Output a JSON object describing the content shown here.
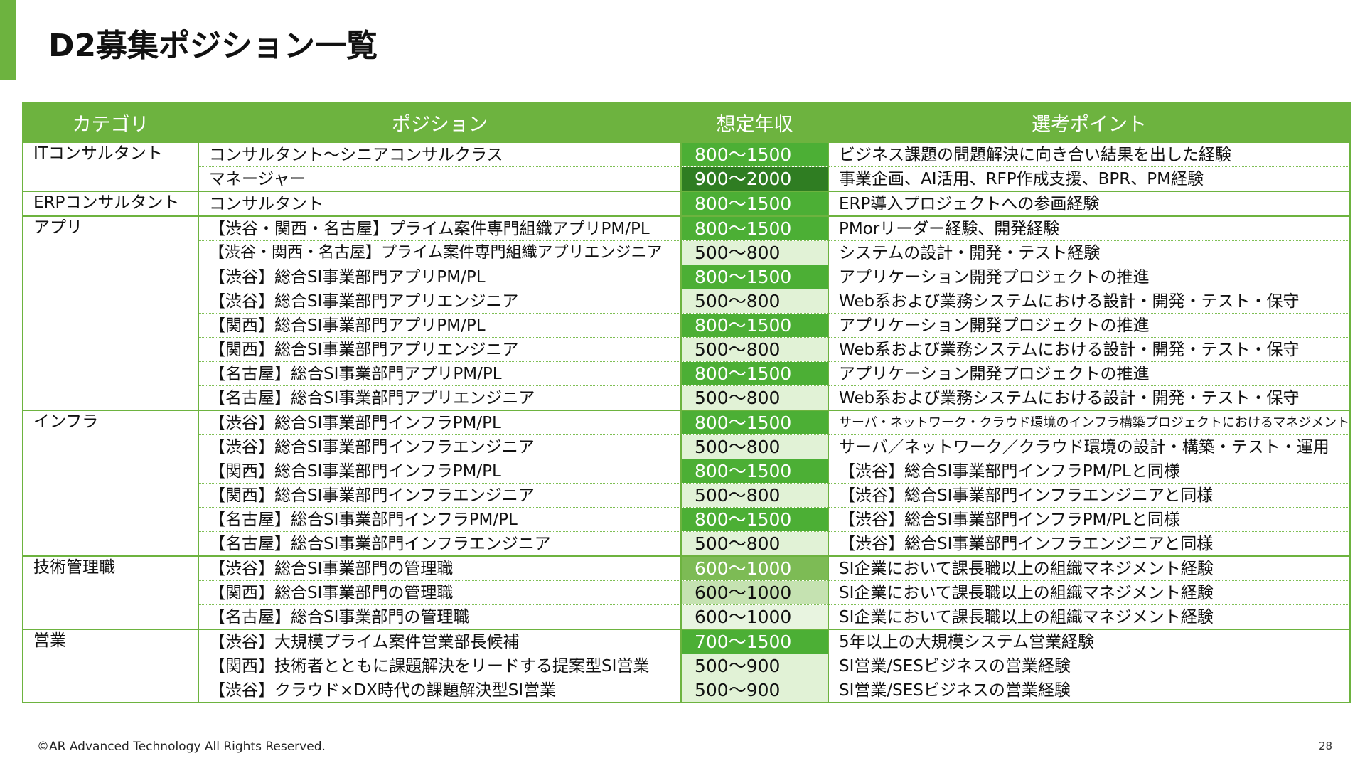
{
  "header": {
    "title": "D2募集ポジション一覧"
  },
  "table": {
    "columns": [
      "カテゴリ",
      "ポジション",
      "想定年収",
      "選考ポイント"
    ],
    "groups": [
      {
        "category": "ITコンサルタント",
        "positions": [
          {
            "position": "コンサルタント～シニアコンサルクラス",
            "salary": "800～1500",
            "salary_color": "#4caf35",
            "point": "ビジネス課題の問題解決に向き合い結果を出した経験"
          },
          {
            "position": "マネージャー",
            "salary": "900～2000",
            "salary_color": "#2f7d22",
            "point": "事業企画、AI活用、RFP作成支援、BPR、PM経験"
          }
        ]
      },
      {
        "category": "ERPコンサルタント",
        "positions": [
          {
            "position": "コンサルタント",
            "salary": "800～1500",
            "salary_color": "#4caf35",
            "point": "ERP導入プロジェクトへの参画経験"
          }
        ]
      },
      {
        "category": "アプリ",
        "positions": [
          {
            "position": "【渋谷・関西・名古屋】プライム案件専門組織アプリPM/PL",
            "salary": "800～1500",
            "salary_color": "#4caf35",
            "point": "PMorリーダー経験、開発経験"
          },
          {
            "position": "【渋谷・関西・名古屋】プライム案件専門組織アプリエンジニア",
            "salary": "500～800",
            "salary_color": "#e1f2d6",
            "point": "システムの設計・開発・テスト経験"
          },
          {
            "position": "【渋谷】総合SI事業部門アプリPM/PL",
            "salary": "800～1500",
            "salary_color": "#4caf35",
            "point": "アプリケーション開発プロジェクトの推進"
          },
          {
            "position": "【渋谷】総合SI事業部門アプリエンジニア",
            "salary": "500～800",
            "salary_color": "#e1f2d6",
            "point": "Web系および業務システムにおける設計・開発・テスト・保守"
          },
          {
            "position": "【関西】総合SI事業部門アプリPM/PL",
            "salary": "800～1500",
            "salary_color": "#4caf35",
            "point": "アプリケーション開発プロジェクトの推進"
          },
          {
            "position": "【関西】総合SI事業部門アプリエンジニア",
            "salary": "500～800",
            "salary_color": "#e1f2d6",
            "point": "Web系および業務システムにおける設計・開発・テスト・保守"
          },
          {
            "position": "【名古屋】総合SI事業部門アプリPM/PL",
            "salary": "800～1500",
            "salary_color": "#4caf35",
            "point": "アプリケーション開発プロジェクトの推進"
          },
          {
            "position": "【名古屋】総合SI事業部門アプリエンジニア",
            "salary": "500～800",
            "salary_color": "#e1f2d6",
            "point": "Web系および業務システムにおける設計・開発・テスト・保守"
          }
        ]
      },
      {
        "category": "インフラ",
        "positions": [
          {
            "position": "【渋谷】総合SI事業部門インフラPM/PL",
            "salary": "800～1500",
            "salary_color": "#4caf35",
            "point": "サーバ・ネットワーク・クラウド環境のインフラ構築プロジェクトにおけるマネジメント"
          },
          {
            "position": "【渋谷】総合SI事業部門インフラエンジニア",
            "salary": "500～800",
            "salary_color": "#e1f2d6",
            "point": "サーバ／ネットワーク／クラウド環境の設計・構築・テスト・運用"
          },
          {
            "position": "【関西】総合SI事業部門インフラPM/PL",
            "salary": "800～1500",
            "salary_color": "#4caf35",
            "point": "【渋谷】総合SI事業部門インフラPM/PLと同様"
          },
          {
            "position": "【関西】総合SI事業部門インフラエンジニア",
            "salary": "500～800",
            "salary_color": "#e1f2d6",
            "point": "【渋谷】総合SI事業部門インフラエンジニアと同様"
          },
          {
            "position": "【名古屋】総合SI事業部門インフラPM/PL",
            "salary": "800～1500",
            "salary_color": "#4caf35",
            "point": "【渋谷】総合SI事業部門インフラPM/PLと同様"
          },
          {
            "position": "【名古屋】総合SI事業部門インフラエンジニア",
            "salary": "500～800",
            "salary_color": "#e1f2d6",
            "point": "【渋谷】総合SI事業部門インフラエンジニアと同様"
          }
        ]
      },
      {
        "category": "技術管理職",
        "positions": [
          {
            "position": "【渋谷】総合SI事業部門の管理職",
            "salary": "600～1000",
            "salary_color": "#7dbb55",
            "point": "SI企業において課長職以上の組織マネジメント経験"
          },
          {
            "position": "【関西】総合SI事業部門の管理職",
            "salary": "600～1000",
            "salary_color": "#c5e2b1",
            "point": "SI企業において課長職以上の組織マネジメント経験"
          },
          {
            "position": "【名古屋】総合SI事業部門の管理職",
            "salary": "600～1000",
            "salary_color": "#e8f4e0",
            "point": "SI企業において課長職以上の組織マネジメント経験"
          }
        ]
      },
      {
        "category": "営業",
        "positions": [
          {
            "position": "【渋谷】大規模プライム案件営業部長候補",
            "salary": "700～1500",
            "salary_color": "#4caf35",
            "point": "5年以上の大規模システム営業経験"
          },
          {
            "position": "【関西】技術者とともに課題解決をリードする提案型SI営業",
            "salary": "500～900",
            "salary_color": "#e1f2d6",
            "point": "SI営業/SESビジネスの営業経験"
          },
          {
            "position": "【渋谷】クラウド×DX時代の課題解決型SI営業",
            "salary": "500～900",
            "salary_color": "#e1f2d6",
            "point": "SI営業/SESビジネスの営業経験"
          }
        ]
      }
    ]
  },
  "footer": {
    "copyright": "©AR Advanced Technology All Rights Reserved.",
    "page": "28"
  }
}
